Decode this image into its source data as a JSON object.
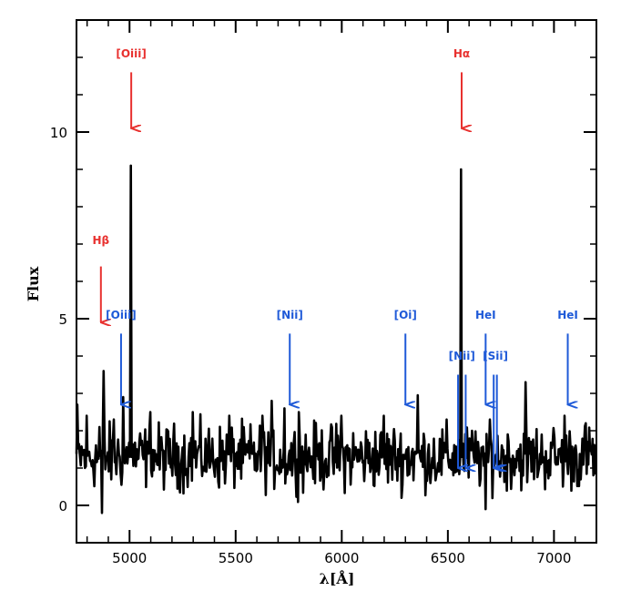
{
  "chart_data": {
    "type": "line",
    "xlabel": "λ[Å]",
    "ylabel": "Flux",
    "xlim": [
      4750,
      7200
    ],
    "ylim": [
      -1,
      13
    ],
    "xticks": [
      5000,
      5500,
      6000,
      6500,
      7000
    ],
    "yticks": [
      0,
      5,
      10
    ],
    "grid": false,
    "colors": {
      "line": "#000000",
      "red_annotation": "#e8312f",
      "blue_annotation": "#1f5ad8"
    },
    "spectrum": {
      "noise_continuum_approx": 1.3,
      "peaks": [
        {
          "x": 4755,
          "y": 2.7
        },
        {
          "x": 4800,
          "y": 2.4
        },
        {
          "x": 4860,
          "y": 2.1
        },
        {
          "x": 4870,
          "y": -0.2
        },
        {
          "x": 4880,
          "y": 3.6
        },
        {
          "x": 4925,
          "y": 2.3
        },
        {
          "x": 4970,
          "y": 2.9
        },
        {
          "x": 5008,
          "y": 9.1
        },
        {
          "x": 5100,
          "y": 2.5
        },
        {
          "x": 5300,
          "y": 2.5
        },
        {
          "x": 5470,
          "y": 2.4
        },
        {
          "x": 5625,
          "y": 2.4
        },
        {
          "x": 5670,
          "y": 2.8
        },
        {
          "x": 5730,
          "y": 2.6
        },
        {
          "x": 5800,
          "y": 2.5
        },
        {
          "x": 6000,
          "y": 2.4
        },
        {
          "x": 6200,
          "y": 2.4
        },
        {
          "x": 6360,
          "y": 2.95
        },
        {
          "x": 6563,
          "y": 9.0
        },
        {
          "x": 6680,
          "y": -0.1
        },
        {
          "x": 6700,
          "y": 2.3
        },
        {
          "x": 6865,
          "y": 3.3
        },
        {
          "x": 7050,
          "y": 2.4
        },
        {
          "x": 7150,
          "y": 2.2
        }
      ]
    },
    "annotations": [
      {
        "label": "Hβ",
        "color": "red",
        "x": 4865,
        "label_y": 7.0,
        "arrow_from": 6.4,
        "arrow_to": 4.9
      },
      {
        "label": "[Oiii]",
        "color": "red",
        "x": 5008,
        "label_y": 12.0,
        "arrow_from": 11.6,
        "arrow_to": 10.1
      },
      {
        "label": "Hα",
        "color": "red",
        "x": 6565,
        "label_y": 12.0,
        "arrow_from": 11.6,
        "arrow_to": 10.1
      },
      {
        "label": "[Oiii]",
        "color": "blue",
        "x": 4960,
        "label_y": 5.0,
        "arrow_from": 4.6,
        "arrow_to": 2.7
      },
      {
        "label": "[Nii]",
        "color": "blue",
        "x": 5755,
        "label_y": 5.0,
        "arrow_from": 4.6,
        "arrow_to": 2.7
      },
      {
        "label": "[Oi]",
        "color": "blue",
        "x": 6300,
        "label_y": 5.0,
        "arrow_from": 4.6,
        "arrow_to": 2.7
      },
      {
        "label": "HeI",
        "color": "blue",
        "x": 6678,
        "label_y": 5.0,
        "arrow_from": 4.6,
        "arrow_to": 2.7
      },
      {
        "label": "HeI",
        "color": "blue",
        "x": 7065,
        "label_y": 5.0,
        "arrow_from": 4.6,
        "arrow_to": 2.7
      },
      {
        "label": "[Nii]",
        "color": "blue",
        "x": 6566,
        "label_y": 3.9,
        "arrows": [
          6548,
          6584
        ],
        "arrow_from": 3.5,
        "arrow_to": 1.0
      },
      {
        "label": "[Sii]",
        "color": "blue",
        "x": 6724,
        "label_y": 3.9,
        "arrows": [
          6716,
          6731
        ],
        "arrow_from": 3.5,
        "arrow_to": 1.0
      }
    ]
  }
}
